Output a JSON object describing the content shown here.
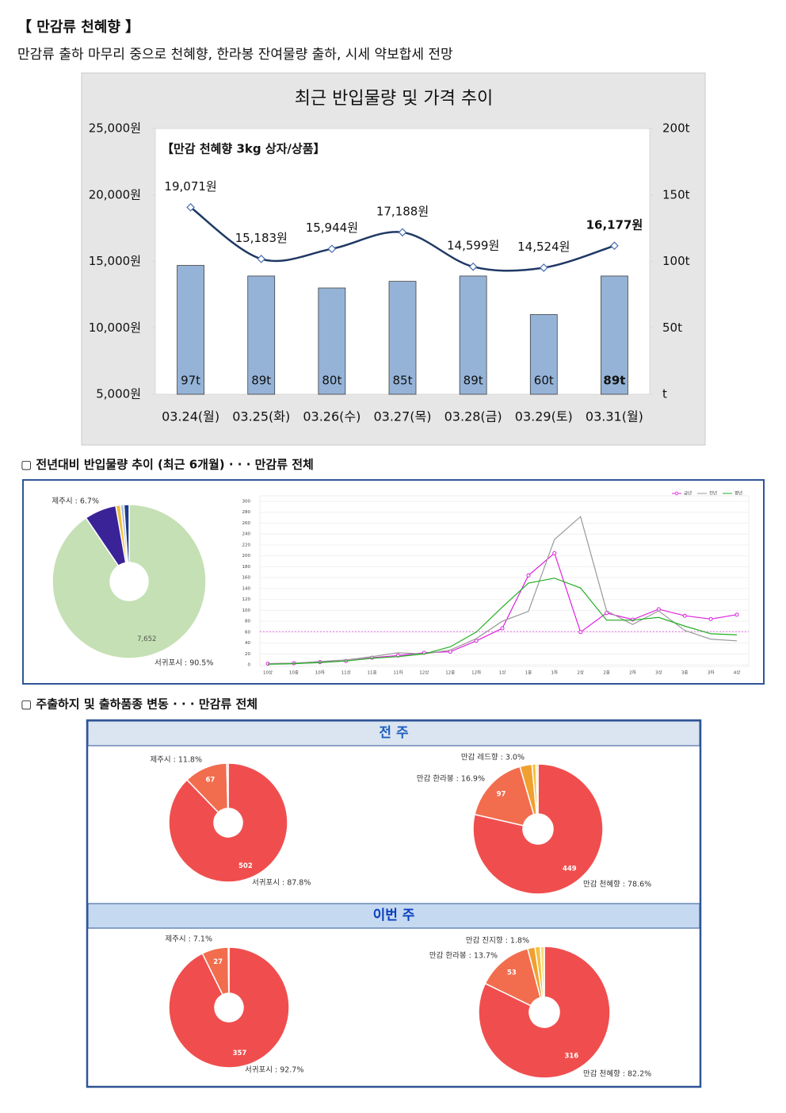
{
  "header": {
    "title": "【 만감류 천혜향 】",
    "subtitle": "만감류 출하 마무리 중으로 천혜향, 한라봉 잔여물량 출하, 시세 약보합세 전망"
  },
  "sections": [
    {
      "heading": "▢ 전년대비 반입물량 추이 (최근 6개월) · · · 만감류 전체"
    },
    {
      "heading": "▢ 주출하지 및 출하품종 변동 · · · 만감류 전체",
      "panels": [
        "전 주",
        "이번 주"
      ]
    }
  ],
  "chart_data": [
    {
      "type": "combo",
      "title": "최근 반입물량 및 가격 추이",
      "annotation": "【만감 천혜향 3kg 상자/상품】",
      "categories": [
        "03.24(월)",
        "03.25(화)",
        "03.26(수)",
        "03.27(목)",
        "03.28(금)",
        "03.29(토)",
        "03.31(월)"
      ],
      "series": [
        {
          "type": "bar",
          "axis": "y2",
          "color": "#95b3d7",
          "values": [
            97,
            89,
            80,
            85,
            89,
            60,
            89
          ],
          "value_labels": [
            "97t",
            "89t",
            "80t",
            "85t",
            "89t",
            "60t",
            "89t"
          ]
        },
        {
          "type": "line",
          "color": "#1f3864",
          "values": [
            19071,
            15183,
            15944,
            17188,
            14599,
            14524,
            16177
          ],
          "value_labels": [
            "19,071원",
            "15,183원",
            "15,944원",
            "17,188원",
            "14,599원",
            "14,524원",
            "16,177원"
          ]
        }
      ],
      "ylim": [
        5000,
        25000
      ],
      "yticks": [
        {
          "value": 5000,
          "label": "5,000원"
        },
        {
          "value": 10000,
          "label": "10,000원"
        },
        {
          "value": 15000,
          "label": "15,000원"
        },
        {
          "value": 20000,
          "label": "20,000원"
        },
        {
          "value": 25000,
          "label": "25,000원"
        }
      ],
      "y2lim": [
        0,
        200
      ],
      "y2ticks": [
        {
          "value": 0,
          "label": "t"
        },
        {
          "value": 50,
          "label": "50t"
        },
        {
          "value": 100,
          "label": "100t"
        },
        {
          "value": 150,
          "label": "150t"
        },
        {
          "value": 200,
          "label": "200t"
        }
      ]
    },
    {
      "type": "pie",
      "values": [
        90.5,
        6.7,
        1.0,
        0.7,
        1.1
      ],
      "value_labels": [
        "서귀포시 : 90.5%",
        "제주시 : 6.7%",
        null,
        null,
        null
      ],
      "counts": [
        {
          "value": 7652,
          "label": "7,652"
        },
        null,
        null,
        null,
        null
      ],
      "colors": [
        "#c5e0b4",
        "#3a2397",
        "#f0c040",
        "#a9bfe0",
        "#1f3a8a"
      ]
    },
    {
      "type": "line",
      "categories": [
        "10상",
        "10중",
        "10하",
        "11상",
        "11중",
        "11하",
        "12상",
        "12중",
        "12하",
        "1상",
        "1중",
        "1하",
        "2상",
        "2중",
        "2하",
        "3상",
        "3중",
        "3하",
        "4상"
      ],
      "series": [
        {
          "name": "금년",
          "color": "#e020e0",
          "values": [
            2,
            3,
            5,
            7,
            13,
            17,
            22,
            24,
            44,
            67,
            164,
            205,
            60,
            95,
            83,
            102,
            90,
            84,
            92
          ]
        },
        {
          "name": "전년",
          "color": "#999999",
          "values": [
            2,
            3,
            6,
            9,
            15,
            22,
            20,
            27,
            48,
            80,
            98,
            230,
            272,
            99,
            74,
            99,
            63,
            47,
            44
          ]
        },
        {
          "name": "평년",
          "color": "#22b022",
          "values": [
            1,
            2,
            4,
            7,
            12,
            15,
            20,
            33,
            60,
            106,
            150,
            159,
            141,
            82,
            82,
            87,
            71,
            57,
            55
          ]
        }
      ],
      "ylim": [
        0,
        300
      ],
      "yticks": [
        0,
        20,
        40,
        60,
        80,
        100,
        120,
        140,
        160,
        180,
        200,
        220,
        240,
        260,
        280,
        300
      ],
      "reference_line": 61,
      "grid": true,
      "legend": "top-right"
    },
    {
      "type": "pie",
      "values": [
        87.8,
        11.8,
        0.4
      ],
      "value_labels": [
        "서귀포시 : 87.8%",
        "제주시 : 11.8%",
        null
      ],
      "counts": [
        502,
        67,
        null
      ],
      "colors": [
        "#f04e4e",
        "#f26d4e",
        "#f0a030"
      ]
    },
    {
      "type": "pie",
      "values": [
        78.6,
        16.9,
        3.0,
        1.0,
        0.5
      ],
      "value_labels": [
        "만감 천혜향 : 78.6%",
        "만감 한라봉 : 16.9%",
        "만감 레드향 : 3.0%",
        null,
        null
      ],
      "counts": [
        449,
        97,
        null,
        null,
        null
      ],
      "colors": [
        "#f04e4e",
        "#f26d4e",
        "#f0a030",
        "#f5c040",
        "#f8de80"
      ]
    },
    {
      "type": "pie",
      "values": [
        92.7,
        7.1,
        0.2
      ],
      "value_labels": [
        "서귀포시 : 92.7%",
        "제주시 : 7.1%",
        null
      ],
      "counts": [
        357,
        27,
        null
      ],
      "colors": [
        "#f04e4e",
        "#f26d4e",
        "#f0a030"
      ]
    },
    {
      "type": "pie",
      "values": [
        82.2,
        13.7,
        1.8,
        1.3,
        1.0
      ],
      "value_labels": [
        "만감 천혜향 : 82.2%",
        "만감 한라봉 : 13.7%",
        "만감 진지향 : 1.8%",
        null,
        null
      ],
      "counts": [
        316,
        53,
        null,
        null,
        null
      ],
      "colors": [
        "#f04e4e",
        "#f26d4e",
        "#f0a030",
        "#f5c040",
        "#f8de80"
      ]
    }
  ]
}
